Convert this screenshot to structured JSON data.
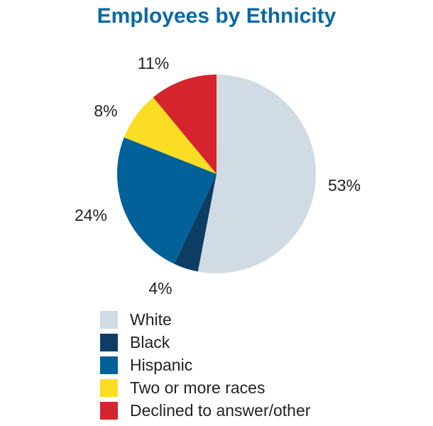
{
  "chart_data": {
    "type": "pie",
    "title": "Employees by Ethnicity",
    "slices": [
      {
        "label": "White",
        "value": 53,
        "display": "53%",
        "color": "#d1dbe3"
      },
      {
        "label": "Black",
        "value": 4,
        "display": "4%",
        "color": "#0d3d63"
      },
      {
        "label": "Hispanic",
        "value": 24,
        "display": "24%",
        "color": "#036199"
      },
      {
        "label": "Two or more races",
        "value": 8,
        "display": "8%",
        "color": "#fbdd23"
      },
      {
        "label": "Declined to answer/other",
        "value": 11,
        "display": "11%",
        "color": "#d6242e"
      }
    ],
    "legend_position": "bottom"
  },
  "colors": {
    "title": "#0c69a4",
    "text": "#222222"
  }
}
